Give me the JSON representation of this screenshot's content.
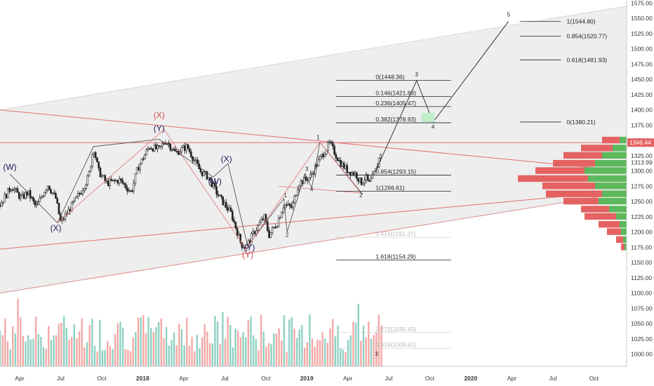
{
  "chart_data": {
    "type": "line",
    "instrument_note": "",
    "title": "",
    "xlabel": "",
    "ylabel": "",
    "ylim": [
      980,
      1580
    ],
    "y_ticks": [
      1000,
      1025,
      1050,
      1075,
      1100,
      1125,
      1150,
      1175,
      1200,
      1225,
      1250,
      1275,
      1300,
      1325,
      1350,
      1375,
      1400,
      1425,
      1450,
      1475,
      1500,
      1525,
      1550,
      1575
    ],
    "x_tick_labels": [
      "Apr",
      "Jul",
      "Oct",
      "2018",
      "Apr",
      "Jul",
      "Oct",
      "2019",
      "Apr",
      "Jul",
      "Oct",
      "2020",
      "Apr",
      "Jul",
      "Oct"
    ],
    "x_ticks_t": [
      2017.25,
      2017.5,
      2017.75,
      2018.0,
      2018.25,
      2018.5,
      2018.75,
      2019.0,
      2019.25,
      2019.5,
      2019.75,
      2020.0,
      2020.25,
      2020.5,
      2020.75
    ],
    "x_range": [
      2017.13,
      2020.95
    ],
    "current_price": {
      "label": "1346.44",
      "value": 1346.44
    },
    "right_axis_extra": {
      "label": "1313.99",
      "value": 1313.99
    },
    "price_series": {
      "name": "",
      "anchors": [
        [
          2017.13,
          1245
        ],
        [
          2017.2,
          1275
        ],
        [
          2017.26,
          1255
        ],
        [
          2017.3,
          1265
        ],
        [
          2017.35,
          1240
        ],
        [
          2017.42,
          1278
        ],
        [
          2017.47,
          1255
        ],
        [
          2017.5,
          1215
        ],
        [
          2017.56,
          1240
        ],
        [
          2017.62,
          1265
        ],
        [
          2017.67,
          1290
        ],
        [
          2017.7,
          1340
        ],
        [
          2017.73,
          1300
        ],
        [
          2017.78,
          1280
        ],
        [
          2017.86,
          1285
        ],
        [
          2017.93,
          1265
        ],
        [
          2017.97,
          1305
        ],
        [
          2018.04,
          1340
        ],
        [
          2018.1,
          1335
        ],
        [
          2018.14,
          1350
        ],
        [
          2018.2,
          1330
        ],
        [
          2018.27,
          1340
        ],
        [
          2018.3,
          1325
        ],
        [
          2018.35,
          1300
        ],
        [
          2018.4,
          1290
        ],
        [
          2018.46,
          1260
        ],
        [
          2018.54,
          1230
        ],
        [
          2018.6,
          1180
        ],
        [
          2018.63,
          1175
        ],
        [
          2018.68,
          1200
        ],
        [
          2018.74,
          1225
        ],
        [
          2018.77,
          1195
        ],
        [
          2018.82,
          1215
        ],
        [
          2018.86,
          1245
        ],
        [
          2018.91,
          1240
        ],
        [
          2018.95,
          1280
        ],
        [
          2019.02,
          1290
        ],
        [
          2019.08,
          1320
        ],
        [
          2019.14,
          1345
        ],
        [
          2019.2,
          1315
        ],
        [
          2019.25,
          1300
        ],
        [
          2019.3,
          1295
        ],
        [
          2019.33,
          1280
        ],
        [
          2019.36,
          1290
        ],
        [
          2019.38,
          1278
        ],
        [
          2019.42,
          1300
        ],
        [
          2019.45,
          1330
        ]
      ]
    },
    "volume_series": {
      "name": "",
      "range": [
        0,
        1
      ],
      "note": ""
    },
    "fib_levels": [
      {
        "label": "0(1448.36)",
        "value": 1448.36,
        "faded": false
      },
      {
        "label": "0.146(1421.83)",
        "value": 1421.83,
        "faded": false
      },
      {
        "label": "0.236(1405.47)",
        "value": 1405.47,
        "faded": false
      },
      {
        "label": "0.382(1378.93)",
        "value": 1378.93,
        "faded": false
      },
      {
        "label": "0.854(1293.15)",
        "value": 1293.15,
        "faded": false
      },
      {
        "label": "1(1266.61)",
        "value": 1266.61,
        "faded": false
      },
      {
        "label": "1.414(1191.37)",
        "value": 1191.37,
        "faded": true
      },
      {
        "label": "1.618(1154.29)",
        "value": 1154.29,
        "faded": false
      },
      {
        "label": "2.272(1035.43)",
        "value": 1035.43,
        "faded": true
      },
      {
        "label": "2.414(1009.62)",
        "value": 1009.62,
        "faded": true
      }
    ],
    "extension_levels": [
      {
        "label": "1(1544.80)",
        "value": 1544.8
      },
      {
        "label": "0.854(1520.77)",
        "value": 1520.77
      },
      {
        "label": "0.618(1481.93)",
        "value": 1481.93
      },
      {
        "label": "0(1380.21)",
        "value": 1380.21
      }
    ],
    "wave_labels": [
      {
        "text": "(W)",
        "t": 2017.19,
        "v": 1302,
        "color": "#1a1a5e",
        "big": true
      },
      {
        "text": "(X)",
        "t": 2017.47,
        "v": 1202,
        "color": "#1a1a5e",
        "big": true
      },
      {
        "text": "(Y)",
        "t": 2018.1,
        "v": 1365,
        "color": "#1a1a5e",
        "big": true
      },
      {
        "text": "(X)",
        "t": 2018.1,
        "v": 1387,
        "color": "#d44",
        "big": true
      },
      {
        "text": "(W)",
        "t": 2018.44,
        "v": 1278,
        "color": "#1a1a5e",
        "big": true
      },
      {
        "text": "(X)",
        "t": 2018.51,
        "v": 1315,
        "color": "#1a1a5e",
        "big": true
      },
      {
        "text": "(Y)",
        "t": 2018.65,
        "v": 1170,
        "color": "#1a1a5e",
        "big": true
      },
      {
        "text": "(Y)",
        "t": 2018.64,
        "v": 1158,
        "color": "#d44",
        "big": true
      },
      {
        "text": "1",
        "t": 2018.87,
        "v": 1257,
        "color": "#222",
        "big": false
      },
      {
        "text": "2",
        "t": 2018.88,
        "v": 1192,
        "color": "#222",
        "big": false
      },
      {
        "text": "3",
        "t": 2019.0,
        "v": 1300,
        "color": "#222",
        "big": false
      },
      {
        "text": "4",
        "t": 2019.03,
        "v": 1267,
        "color": "#222",
        "big": false
      },
      {
        "text": "1",
        "t": 2019.07,
        "v": 1352,
        "color": "#222",
        "big": false
      },
      {
        "text": "2",
        "t": 2019.33,
        "v": 1257,
        "color": "#222",
        "big": false
      },
      {
        "text": "3",
        "t": 2019.67,
        "v": 1455,
        "color": "#222",
        "big": false
      },
      {
        "text": "4",
        "t": 2019.77,
        "v": 1369,
        "color": "#222",
        "big": false
      },
      {
        "text": "5",
        "t": 2020.23,
        "v": 1553,
        "color": "#222",
        "big": false
      },
      {
        "text": "3",
        "t": 2019.425,
        "v": 997,
        "color": "#222",
        "big": false
      }
    ],
    "projection_path": [
      [
        2019.42,
        1300
      ],
      [
        2019.67,
        1448
      ],
      [
        2019.77,
        1380
      ],
      [
        2020.23,
        1545
      ]
    ],
    "channel": {
      "upper": [
        [
          2017.13,
          1400
        ],
        [
          2020.95,
          1570
        ]
      ],
      "lower": [
        [
          2017.13,
          1100
        ],
        [
          2020.95,
          1265
        ]
      ]
    },
    "red_lines": [
      {
        "name": "resistance-horizontal",
        "from": [
          2017.13,
          1346.44
        ],
        "to": [
          2020.95,
          1346.44
        ]
      },
      {
        "name": "descending-trendline",
        "from": [
          2017.13,
          1400
        ],
        "to": [
          2020.95,
          1300
        ]
      },
      {
        "name": "ascending-support",
        "from": [
          2017.13,
          1172
        ],
        "to": [
          2020.95,
          1268
        ]
      }
    ],
    "volume_profile": [
      {
        "price": 1350,
        "up": 10,
        "down": 25
      },
      {
        "price": 1337,
        "up": 20,
        "down": 45
      },
      {
        "price": 1325,
        "up": 35,
        "down": 55
      },
      {
        "price": 1312,
        "up": 45,
        "down": 60
      },
      {
        "price": 1300,
        "up": 60,
        "down": 70
      },
      {
        "price": 1287,
        "up": 55,
        "down": 100
      },
      {
        "price": 1275,
        "up": 45,
        "down": 75
      },
      {
        "price": 1262,
        "up": 35,
        "down": 80
      },
      {
        "price": 1250,
        "up": 40,
        "down": 50
      },
      {
        "price": 1237,
        "up": 25,
        "down": 40
      },
      {
        "price": 1225,
        "up": 15,
        "down": 45
      },
      {
        "price": 1212,
        "up": 10,
        "down": 30
      },
      {
        "price": 1200,
        "up": 8,
        "down": 20
      },
      {
        "price": 1187,
        "up": 5,
        "down": 10
      },
      {
        "price": 1175,
        "up": 3,
        "down": 5
      }
    ],
    "grid": false,
    "legend": "none"
  }
}
